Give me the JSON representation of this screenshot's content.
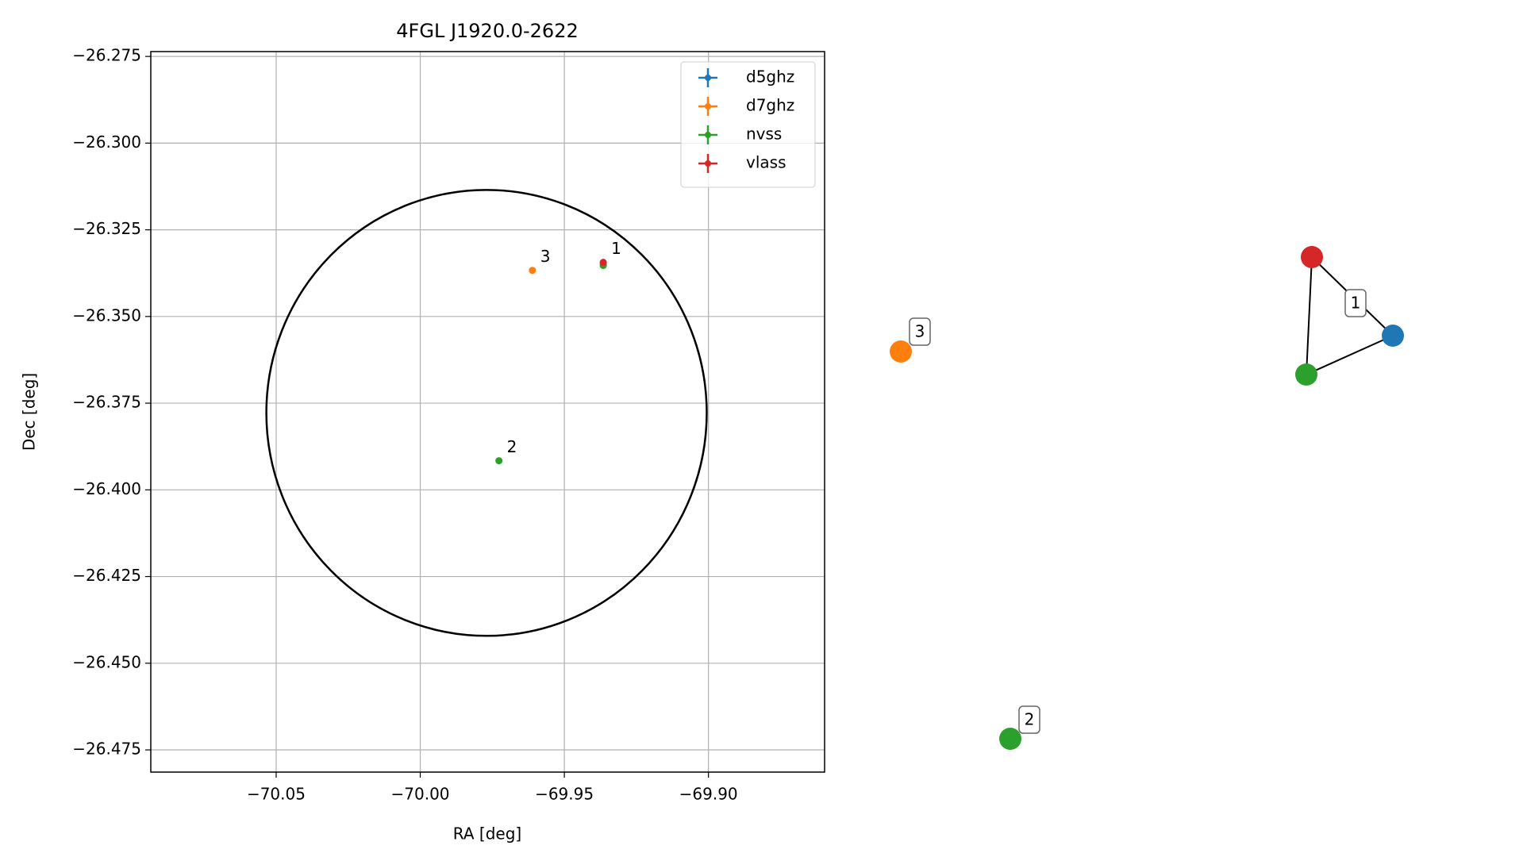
{
  "chart_data": {
    "type": "scatter",
    "title": "4FGL J1920.0-2622",
    "x_label": "RA [deg]",
    "y_label": "Dec [deg]",
    "xlim": [
      -70.0935,
      -69.8597
    ],
    "ylim": [
      -26.4814,
      -26.2736
    ],
    "xticks": [
      {
        "value": -70.05,
        "label": "−70.05"
      },
      {
        "value": -70.0,
        "label": "−70.00"
      },
      {
        "value": -69.95,
        "label": "−69.95"
      },
      {
        "value": -69.9,
        "label": "−69.90"
      }
    ],
    "yticks": [
      {
        "value": -26.275,
        "label": "−26.275"
      },
      {
        "value": -26.3,
        "label": "−26.300"
      },
      {
        "value": -26.325,
        "label": "−26.325"
      },
      {
        "value": -26.35,
        "label": "−26.350"
      },
      {
        "value": -26.375,
        "label": "−26.375"
      },
      {
        "value": -26.4,
        "label": "−26.400"
      },
      {
        "value": -26.425,
        "label": "−26.425"
      },
      {
        "value": -26.45,
        "label": "−26.450"
      },
      {
        "value": -26.475,
        "label": "−26.475"
      }
    ],
    "grid": true,
    "legend": "upper right",
    "series": [
      {
        "name": "d5ghz",
        "color": "#1f77b4",
        "x": [
          -69.9365
        ],
        "y": [
          -26.3347
        ]
      },
      {
        "name": "d7ghz",
        "color": "#ff7f0e",
        "x": [
          -69.9611
        ],
        "y": [
          -26.3367
        ]
      },
      {
        "name": "nvss",
        "color": "#2ca02c",
        "x": [
          -69.9365,
          -69.9727
        ],
        "y": [
          -26.3353,
          -26.3916
        ]
      },
      {
        "name": "vlass",
        "color": "#d62728",
        "x": [
          -69.9365
        ],
        "y": [
          -26.3344
        ]
      }
    ],
    "annotations": [
      {
        "text": "1",
        "x": -69.9365,
        "y": -26.3344
      },
      {
        "text": "3",
        "x": -69.9611,
        "y": -26.3367
      },
      {
        "text": "2",
        "x": -69.9727,
        "y": -26.3916
      }
    ],
    "circle": {
      "x": -69.977,
      "y": -26.3778,
      "rx": 0.0764,
      "ry": 0.0643
    }
  },
  "network": {
    "components": [
      {
        "label": "1",
        "nodes": [
          {
            "color": "#d62728"
          },
          {
            "color": "#1f77b4"
          },
          {
            "color": "#2ca02c"
          }
        ]
      },
      {
        "label": "3",
        "nodes": [
          {
            "color": "#ff7f0e"
          }
        ]
      },
      {
        "label": "2",
        "nodes": [
          {
            "color": "#2ca02c"
          }
        ]
      }
    ]
  }
}
